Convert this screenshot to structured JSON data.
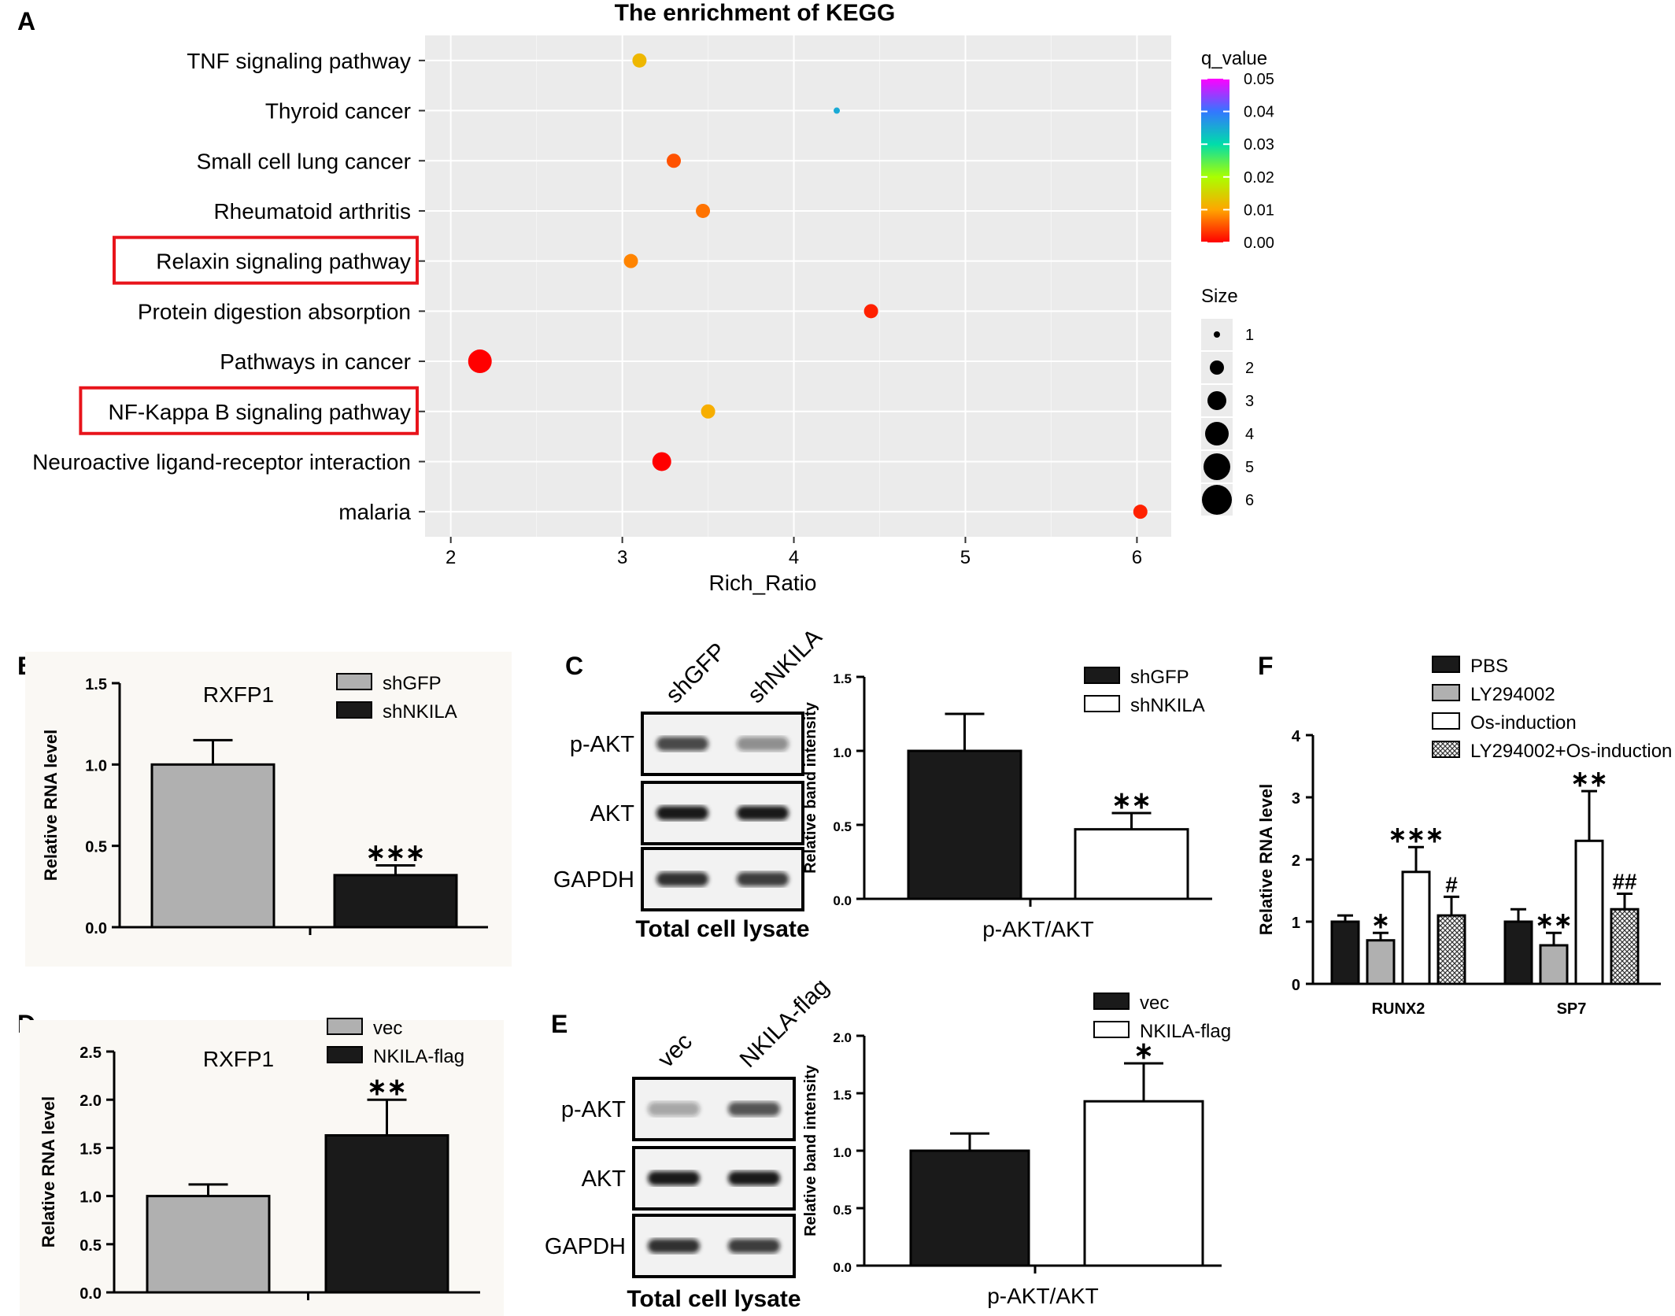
{
  "panel_labels": {
    "A": "A",
    "B": "B",
    "C": "C",
    "D": "D",
    "E": "E",
    "F": "F"
  },
  "chart_data": [
    {
      "panel": "A",
      "type": "scatter",
      "title": "The enrichment of KEGG",
      "xlabel": "Rich_Ratio",
      "xlim": [
        1.85,
        6.2
      ],
      "xticks": [
        "2",
        "3",
        "4",
        "5",
        "6"
      ],
      "xtick_values": [
        2,
        3,
        4,
        5,
        6
      ],
      "categories": [
        "TNF signaling pathway",
        "Thyroid cancer",
        "Small cell lung cancer",
        "Rheumatoid  arthritis",
        "Relaxin signaling pathway",
        "Protein digestion absorption",
        "Pathways in cancer",
        "NF-Kappa B signaling pathway",
        "Neuroactive ligand-receptor interaction",
        "malaria"
      ],
      "highlighted": [
        "Relaxin signaling pathway",
        "NF-Kappa B signaling pathway"
      ],
      "highlight_color": "#e8141b",
      "points": [
        {
          "term": "TNF signaling pathway",
          "rich_ratio": 3.1,
          "size": 2,
          "q_value": 0.012
        },
        {
          "term": "Thyroid cancer",
          "rich_ratio": 4.25,
          "size": 1,
          "q_value": 0.035
        },
        {
          "term": "Small cell lung cancer",
          "rich_ratio": 3.3,
          "size": 2,
          "q_value": 0.005
        },
        {
          "term": "Rheumatoid  arthritis",
          "rich_ratio": 3.47,
          "size": 2,
          "q_value": 0.007
        },
        {
          "term": "Relaxin signaling pathway",
          "rich_ratio": 3.05,
          "size": 2,
          "q_value": 0.008
        },
        {
          "term": "Protein digestion absorption",
          "rich_ratio": 4.45,
          "size": 2,
          "q_value": 0.002
        },
        {
          "term": "Pathways in cancer",
          "rich_ratio": 2.17,
          "size": 4,
          "q_value": 0.0
        },
        {
          "term": "NF-Kappa B signaling pathway",
          "rich_ratio": 3.5,
          "size": 2,
          "q_value": 0.011
        },
        {
          "term": "Neuroactive ligand-receptor interaction",
          "rich_ratio": 3.23,
          "size": 3,
          "q_value": 0.0
        },
        {
          "term": "malaria",
          "rich_ratio": 6.02,
          "size": 2,
          "q_value": 0.002
        }
      ],
      "legend_color": {
        "title": "q_value",
        "ticks": [
          "0.05",
          "0.04",
          "0.03",
          "0.02",
          "0.01",
          "0.00"
        ],
        "range": [
          0,
          0.05
        ]
      },
      "legend_size": {
        "title": "Size",
        "levels": [
          "1",
          "2",
          "3",
          "4",
          "5",
          "6"
        ]
      },
      "background": "#ebebeb",
      "grid": true
    },
    {
      "panel": "B",
      "type": "bar",
      "title": "RXFP1",
      "ylabel": "Relative RNA level",
      "ylim": [
        0,
        1.5
      ],
      "yticks": [
        "0.0",
        "0.5",
        "1.0",
        "1.5"
      ],
      "series": [
        {
          "name": "shGFP",
          "value": 1.0,
          "error": 0.15,
          "color": "#b0b0b0",
          "sig": ""
        },
        {
          "name": "shNKILA",
          "value": 0.32,
          "error": 0.06,
          "color": "#1a1a1a",
          "sig": "***"
        }
      ]
    },
    {
      "panel": "C",
      "type": "bar",
      "ylabel": "Relative band intensity",
      "xlabel": "p-AKT/AKT",
      "ylim": [
        0,
        1.5
      ],
      "yticks": [
        "0.0",
        "0.5",
        "1.0",
        "1.5"
      ],
      "series": [
        {
          "name": "shGFP",
          "value": 1.0,
          "error": 0.25,
          "color": "#1a1a1a",
          "sig": ""
        },
        {
          "name": "shNKILA",
          "value": 0.47,
          "error": 0.11,
          "color": "#ffffff",
          "sig": "**"
        }
      ]
    },
    {
      "panel": "D",
      "type": "bar",
      "title": "RXFP1",
      "ylabel": "Relative RNA level",
      "ylim": [
        0,
        2.5
      ],
      "yticks": [
        "0.0",
        "0.5",
        "1.0",
        "1.5",
        "2.0",
        "2.5"
      ],
      "series": [
        {
          "name": "vec",
          "value": 1.0,
          "error": 0.12,
          "color": "#b0b0b0",
          "sig": ""
        },
        {
          "name": "NKILA-flag",
          "value": 1.63,
          "error": 0.37,
          "color": "#1a1a1a",
          "sig": "**"
        }
      ]
    },
    {
      "panel": "E",
      "type": "bar",
      "ylabel": "Relative band intensity",
      "xlabel": "p-AKT/AKT",
      "ylim": [
        0,
        2.0
      ],
      "yticks": [
        "0.0",
        "0.5",
        "1.0",
        "1.5",
        "2.0"
      ],
      "series": [
        {
          "name": "vec",
          "value": 1.0,
          "error": 0.15,
          "color": "#1a1a1a",
          "sig": ""
        },
        {
          "name": "NKILA-flag",
          "value": 1.43,
          "error": 0.33,
          "color": "#ffffff",
          "sig": "*"
        }
      ]
    },
    {
      "panel": "F",
      "type": "bar",
      "ylabel": "Relative RNA level",
      "ylim": [
        0,
        4
      ],
      "yticks": [
        "0",
        "1",
        "2",
        "3",
        "4"
      ],
      "categories": [
        "RUNX2",
        "SP7"
      ],
      "series": [
        {
          "name": "PBS",
          "values": [
            1.0,
            1.0
          ],
          "errors": [
            0.1,
            0.2
          ],
          "fill": "black",
          "sig": [
            "",
            ""
          ]
        },
        {
          "name": "LY294002",
          "values": [
            0.7,
            0.62
          ],
          "errors": [
            0.12,
            0.2
          ],
          "fill": "gray",
          "sig": [
            "*",
            "**"
          ]
        },
        {
          "name": "Os-induction",
          "values": [
            1.8,
            2.3
          ],
          "errors": [
            0.4,
            0.8
          ],
          "fill": "white",
          "sig": [
            "***",
            "**"
          ]
        },
        {
          "name": "LY294002+Os-induction",
          "values": [
            1.1,
            1.2
          ],
          "errors": [
            0.3,
            0.25
          ],
          "fill": "hatch",
          "sig": [
            "#",
            "##"
          ]
        }
      ]
    }
  ],
  "blots": {
    "C": {
      "lanes": [
        "shGFP",
        "shNKILA"
      ],
      "rows": [
        "p-AKT",
        "AKT",
        "GAPDH"
      ],
      "caption": "Total cell lysate"
    },
    "E": {
      "lanes": [
        "vec",
        "NKILA-flag"
      ],
      "rows": [
        "p-AKT",
        "AKT",
        "GAPDH"
      ],
      "caption": "Total cell lysate"
    }
  }
}
